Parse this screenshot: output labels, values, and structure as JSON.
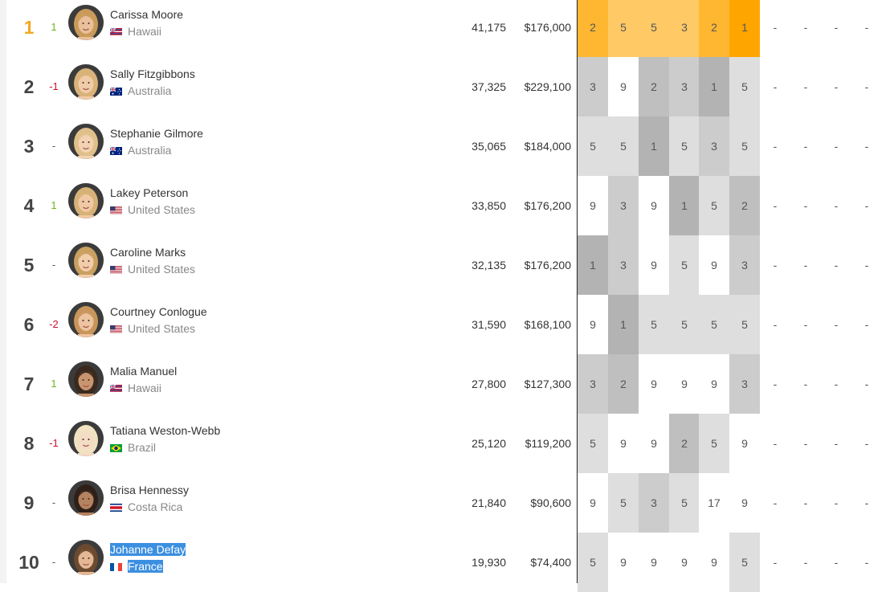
{
  "rows": [
    {
      "rank": "1",
      "change": "1",
      "change_type": "up",
      "name": "Carissa Moore",
      "country": "Hawaii",
      "flag_icon": "hawaii-flag-icon",
      "points": "41,175",
      "prize": "$176,000",
      "results": [
        "2",
        "5",
        "5",
        "3",
        "2",
        "1"
      ],
      "leader": true
    },
    {
      "rank": "2",
      "change": "-1",
      "change_type": "down",
      "name": "Sally Fitzgibbons",
      "country": "Australia",
      "flag_icon": "australia-flag-icon",
      "points": "37,325",
      "prize": "$229,100",
      "results": [
        "3",
        "9",
        "2",
        "3",
        "1",
        "5"
      ]
    },
    {
      "rank": "3",
      "change": "-",
      "change_type": "none",
      "name": "Stephanie Gilmore",
      "country": "Australia",
      "flag_icon": "australia-flag-icon",
      "points": "35,065",
      "prize": "$184,000",
      "results": [
        "5",
        "5",
        "1",
        "5",
        "3",
        "5"
      ]
    },
    {
      "rank": "4",
      "change": "1",
      "change_type": "up",
      "name": "Lakey Peterson",
      "country": "United States",
      "flag_icon": "usa-flag-icon",
      "points": "33,850",
      "prize": "$176,200",
      "results": [
        "9",
        "3",
        "9",
        "1",
        "5",
        "2"
      ]
    },
    {
      "rank": "5",
      "change": "-",
      "change_type": "none",
      "name": "Caroline Marks",
      "country": "United States",
      "flag_icon": "usa-flag-icon",
      "points": "32,135",
      "prize": "$176,200",
      "results": [
        "1",
        "3",
        "9",
        "5",
        "9",
        "3"
      ]
    },
    {
      "rank": "6",
      "change": "-2",
      "change_type": "down",
      "name": "Courtney Conlogue",
      "country": "United States",
      "flag_icon": "usa-flag-icon",
      "points": "31,590",
      "prize": "$168,100",
      "results": [
        "9",
        "1",
        "5",
        "5",
        "5",
        "5"
      ]
    },
    {
      "rank": "7",
      "change": "1",
      "change_type": "up",
      "name": "Malia Manuel",
      "country": "Hawaii",
      "flag_icon": "hawaii-flag-icon",
      "points": "27,800",
      "prize": "$127,300",
      "results": [
        "3",
        "2",
        "9",
        "9",
        "9",
        "3"
      ]
    },
    {
      "rank": "8",
      "change": "-1",
      "change_type": "down",
      "name": "Tatiana Weston-Webb",
      "country": "Brazil",
      "flag_icon": "brazil-flag-icon",
      "points": "25,120",
      "prize": "$119,200",
      "results": [
        "5",
        "9",
        "9",
        "2",
        "5",
        "9"
      ]
    },
    {
      "rank": "9",
      "change": "-",
      "change_type": "none",
      "name": "Brisa Hennessy",
      "country": "Costa Rica",
      "flag_icon": "costa-rica-flag-icon",
      "points": "21,840",
      "prize": "$90,600",
      "results": [
        "9",
        "5",
        "3",
        "5",
        "17",
        "9"
      ]
    },
    {
      "rank": "10",
      "change": "-",
      "change_type": "none",
      "name": "Johanne Defay",
      "country": "France",
      "flag_icon": "france-flag-icon",
      "points": "19,930",
      "prize": "$74,400",
      "results": [
        "5",
        "9",
        "9",
        "9",
        "9",
        "5"
      ],
      "selected": true
    }
  ],
  "empty_result": "-",
  "colors": {
    "leader_1": "#ffa500",
    "leader_2": "#ffb732",
    "leader_3": "#ffc966",
    "place_1": "#b3b3b3",
    "place_2": "#bfbfbf",
    "place_3": "#cccccc",
    "place_5": "#dedede",
    "place_9": "#ffffff",
    "selection": "#3b8fe0"
  }
}
